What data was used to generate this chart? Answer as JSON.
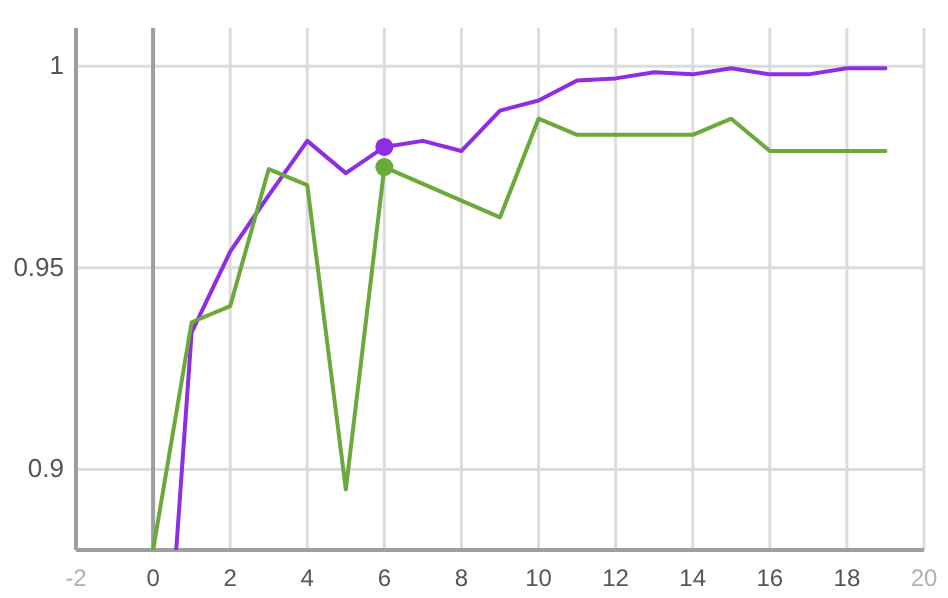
{
  "chart_data": {
    "type": "line",
    "xlim": [
      -2,
      20
    ],
    "ylim": [
      0.88,
      1.0095
    ],
    "xticks": [
      {
        "value": -2,
        "label": "-2"
      },
      0,
      2,
      4,
      6,
      8,
      10,
      12,
      14,
      16,
      18,
      {
        "value": 20,
        "label": "20"
      }
    ],
    "yticks": [
      0.9,
      0.95,
      1
    ],
    "grid": true,
    "marker": "none",
    "line_style": "solid",
    "ref_lines": [
      {
        "axis": "x",
        "value": 0,
        "color": "#9e9e9e"
      }
    ],
    "series": [
      {
        "color": "#8e2de2",
        "x": [
          0.6,
          1,
          2,
          3,
          4,
          5,
          6,
          7,
          8,
          9,
          10,
          11,
          12,
          13,
          14,
          15,
          16,
          17,
          18,
          19
        ],
        "values": [
          0.88,
          0.934,
          0.954,
          0.968,
          0.9815,
          0.9735,
          0.98,
          0.9815,
          0.979,
          0.989,
          0.9915,
          0.9965,
          0.997,
          0.9985,
          0.998,
          0.9995,
          0.998,
          0.998,
          0.9995,
          0.9995
        ]
      },
      {
        "color": "#6aaa3a",
        "x": [
          0,
          1,
          2,
          3,
          4,
          5,
          6,
          9,
          10,
          11,
          12,
          13,
          14,
          15,
          16,
          17,
          18,
          19
        ],
        "values": [
          0.88,
          0.9365,
          0.9405,
          0.9745,
          0.9705,
          0.895,
          0.975,
          0.9625,
          0.987,
          0.983,
          0.983,
          0.983,
          0.983,
          0.987,
          0.979,
          0.979,
          0.979,
          0.979
        ]
      },
      {
        "type": "scatter",
        "marker": "circle",
        "color": "#8e2de2",
        "x": [
          6
        ],
        "values": [
          0.98
        ]
      },
      {
        "type": "scatter",
        "marker": "circle",
        "color": "#6aaa3a",
        "x": [
          6
        ],
        "values": [
          0.975
        ]
      }
    ]
  }
}
